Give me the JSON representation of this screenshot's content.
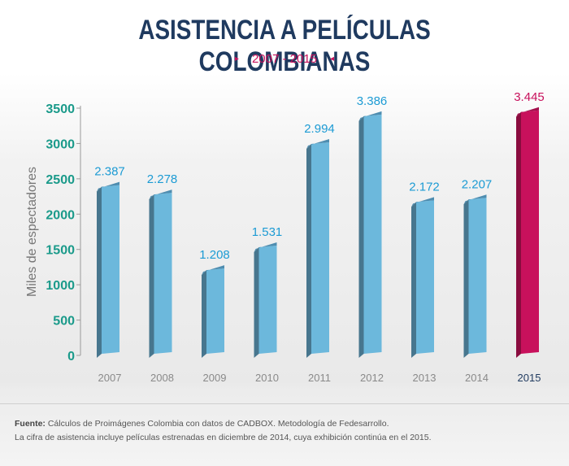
{
  "title": "ASISTENCIA A PELÍCULAS COLOMBIANAS",
  "subtitle": "2007 - 2015",
  "arrow_left": "▸",
  "arrow_right": "◂",
  "colors": {
    "bar": "#6cb8dc",
    "bar_side": "#47768e",
    "bar_top": "#4e8db0",
    "highlight": "#c8115c",
    "highlight_side": "#8a0c3f",
    "highlight_top": "#a30e4c",
    "value_label": "#1c9bd4",
    "y_tick": "#1a9a8a"
  },
  "chart_data": {
    "type": "bar",
    "categories": [
      "2007",
      "2008",
      "2009",
      "2010",
      "2011",
      "2012",
      "2013",
      "2014",
      "2015"
    ],
    "values": [
      2387,
      2278,
      1208,
      1531,
      2994,
      3386,
      2172,
      2207,
      3445
    ],
    "value_labels": [
      "2.387",
      "2.278",
      "1.208",
      "1.531",
      "2.994",
      "3.386",
      "2.172",
      "2.207",
      "3.445"
    ],
    "highlight_category": "2015",
    "ylabel": "Miles de espectadores",
    "xlabel": "",
    "ylim": [
      0,
      3500
    ],
    "yticks": [
      0,
      500,
      1000,
      1500,
      2000,
      2500,
      3000,
      3500
    ],
    "grid": false
  },
  "footer": {
    "source_label": "Fuente:",
    "source_text": " Cálculos de Proimágenes Colombia con datos de CADBOX. Metodología de Fedesarrollo.",
    "note": "La cifra de asistencia incluye películas estrenadas en diciembre de 2014, cuya exhibición continúa en el 2015."
  }
}
